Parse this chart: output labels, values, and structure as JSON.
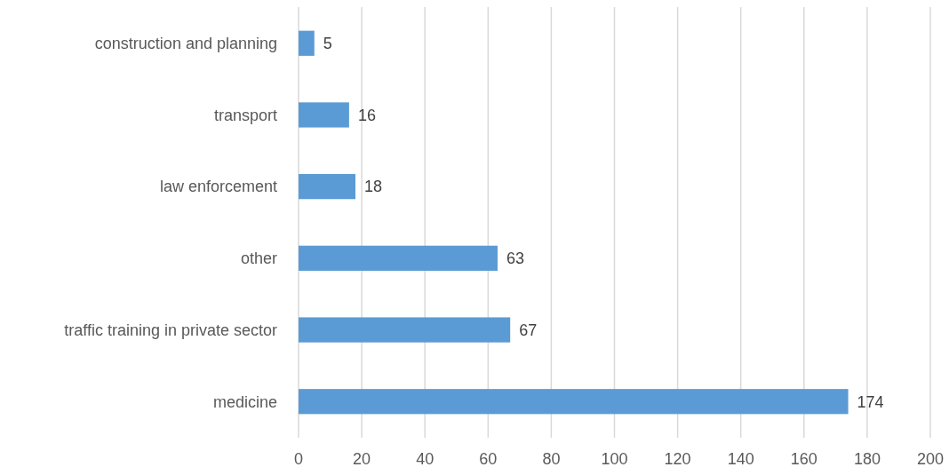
{
  "chart_data": {
    "type": "bar",
    "orientation": "horizontal",
    "categories": [
      "construction and planning",
      "transport",
      "law enforcement",
      "other",
      "traffic training in private sector",
      "medicine"
    ],
    "values": [
      5,
      16,
      18,
      63,
      67,
      174
    ],
    "color": "#5b9bd5",
    "xlim": [
      0,
      200
    ],
    "xticks": [
      0,
      20,
      40,
      60,
      80,
      100,
      120,
      140,
      160,
      180,
      200
    ],
    "grid": "x",
    "data_labels": true
  }
}
